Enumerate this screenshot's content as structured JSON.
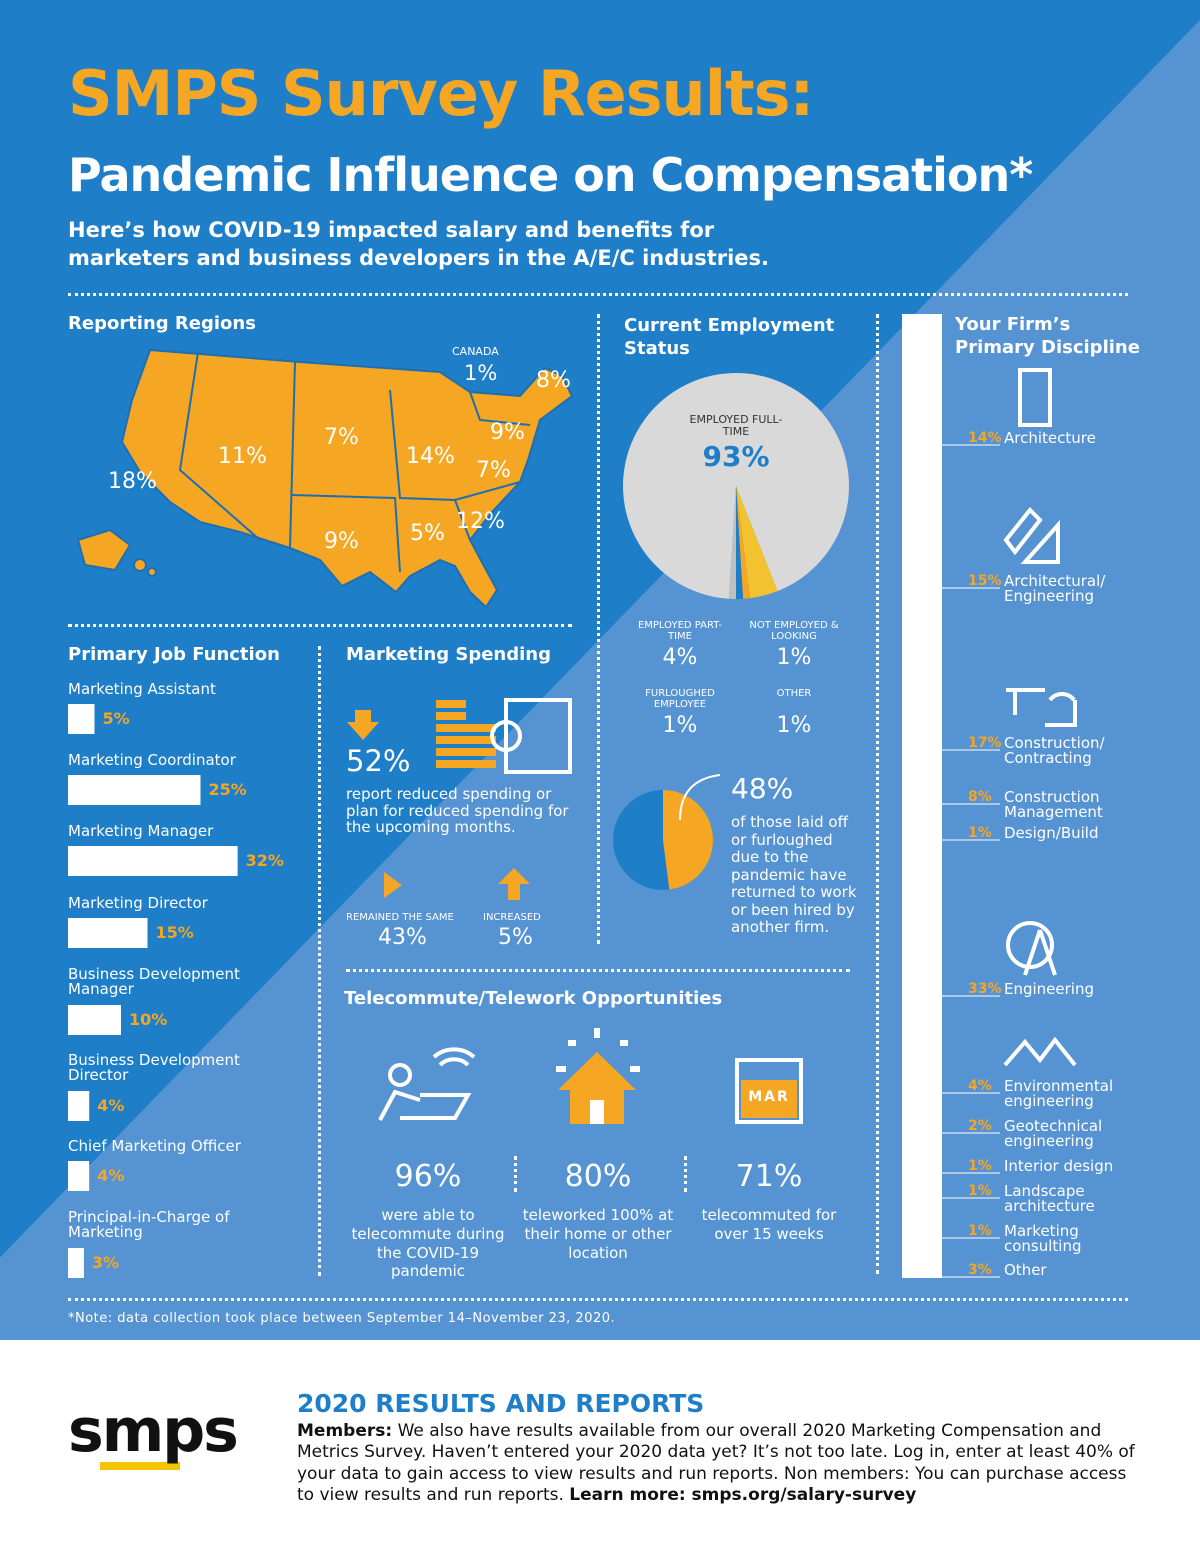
{
  "header": {
    "title": "SMPS Survey Results:",
    "subtitle": "Pandemic Influence on Compensation*",
    "intro": "Here’s how COVID-19 impacted salary and benefits for marketers and business developers in the A/E/C industries."
  },
  "regions": {
    "title": "Reporting Regions",
    "canada_label": "CANADA",
    "canada": "1%",
    "items": [
      "18%",
      "11%",
      "7%",
      "9%",
      "14%",
      "5%",
      "9%",
      "7%",
      "12%",
      "8%"
    ]
  },
  "employment": {
    "title": "Current Employment Status",
    "slices": [
      {
        "label": "EMPLOYED FULL-TIME",
        "value": "93%"
      },
      {
        "label": "EMPLOYED PART-TIME",
        "value": "4%"
      },
      {
        "label": "NOT EMPLOYED & LOOKING",
        "value": "1%"
      },
      {
        "label": "FURLOUGHED EMPLOYEE",
        "value": "1%"
      },
      {
        "label": "OTHER",
        "value": "1%"
      }
    ],
    "returned": {
      "value": "48%",
      "text": "of those laid off or furloughed due to the pandemic have returned to work or been hired by another firm."
    }
  },
  "job_function": {
    "title": "Primary Job Function",
    "items": [
      {
        "label": "Marketing Assistant",
        "value": "5%"
      },
      {
        "label": "Marketing Coordinator",
        "value": "25%"
      },
      {
        "label": "Marketing Manager",
        "value": "32%"
      },
      {
        "label": "Marketing Director",
        "value": "15%"
      },
      {
        "label": "Business Development Manager",
        "value": "10%"
      },
      {
        "label": "Business Development Director",
        "value": "4%"
      },
      {
        "label": "Chief Marketing Officer",
        "value": "4%"
      },
      {
        "label": "Principal-in-Charge of Marketing",
        "value": "3%"
      }
    ]
  },
  "spending": {
    "title": "Marketing Spending",
    "reduced": "52%",
    "reduced_text": "report reduced spending or plan for reduced spending for the upcoming months.",
    "same_label": "REMAINED THE SAME",
    "same": "43%",
    "increased_label": "INCREASED",
    "increased": "5%"
  },
  "telework": {
    "title": "Telecommute/Telework Opportunities",
    "calendar": "MAR",
    "items": [
      {
        "value": "96%",
        "text": "were able to telecommute during the COVID-19 pandemic"
      },
      {
        "value": "80%",
        "text": "teleworked 100% at their home or other location"
      },
      {
        "value": "71%",
        "text": "telecommuted for over 15 weeks"
      }
    ]
  },
  "discipline": {
    "title": "Your Firm’s Primary Discipline",
    "items": [
      {
        "value": "14%",
        "label": "Architecture"
      },
      {
        "value": "15%",
        "label": "Architectural/ Engineering"
      },
      {
        "value": "17%",
        "label": "Construction/ Contracting"
      },
      {
        "value": "8%",
        "label": "Construction Management"
      },
      {
        "value": "1%",
        "label": "Design/Build"
      },
      {
        "value": "33%",
        "label": "Engineering"
      },
      {
        "value": "4%",
        "label": "Environmental engineering"
      },
      {
        "value": "2%",
        "label": "Geotechnical engineering"
      },
      {
        "value": "1%",
        "label": "Interior design"
      },
      {
        "value": "1%",
        "label": "Landscape architecture"
      },
      {
        "value": "1%",
        "label": "Marketing consulting"
      },
      {
        "value": "3%",
        "label": "Other"
      }
    ]
  },
  "note": "*Note: data collection took place between September 14–November 23, 2020.",
  "footer": {
    "logo": "smps",
    "heading": "2020 RESULTS AND REPORTS",
    "members_label": "Members:",
    "body": "We also have results available from our overall 2020 Marketing Compensation and Metrics Survey. Haven’t entered your 2020 data yet? It’s not too late. Log in, enter at least 40% of your data to gain access to view results and run reports. Non members: You can purchase access to view results and run reports.",
    "learn_more": "Learn more: smps.org/salary-survey"
  }
}
